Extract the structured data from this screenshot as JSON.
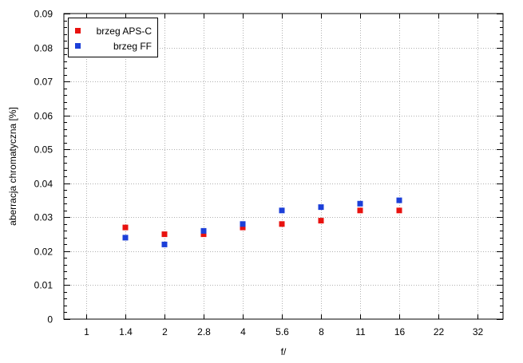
{
  "chart_data": {
    "type": "scatter",
    "xlabel": "f/",
    "ylabel": "aberracja chromatyczna [%]",
    "categories": [
      "1",
      "1.4",
      "2",
      "2.8",
      "4",
      "5.6",
      "8",
      "11",
      "16",
      "22",
      "32"
    ],
    "ylim": [
      0,
      0.09
    ],
    "yticks": [
      "0",
      "0.01",
      "0.02",
      "0.03",
      "0.04",
      "0.05",
      "0.06",
      "0.07",
      "0.08",
      "0.09"
    ],
    "grid": true,
    "legend_position": "top-left",
    "series": [
      {
        "name": "brzeg APS-C",
        "color": "#e8120f",
        "points": [
          {
            "x": "1.4",
            "y": 0.027
          },
          {
            "x": "2",
            "y": 0.025
          },
          {
            "x": "2.8",
            "y": 0.025
          },
          {
            "x": "4",
            "y": 0.027
          },
          {
            "x": "5.6",
            "y": 0.028
          },
          {
            "x": "8",
            "y": 0.029
          },
          {
            "x": "11",
            "y": 0.032
          },
          {
            "x": "16",
            "y": 0.032
          }
        ]
      },
      {
        "name": "brzeg FF",
        "color": "#1c3fd8",
        "points": [
          {
            "x": "1.4",
            "y": 0.024
          },
          {
            "x": "2",
            "y": 0.022
          },
          {
            "x": "2.8",
            "y": 0.026
          },
          {
            "x": "4",
            "y": 0.028
          },
          {
            "x": "5.6",
            "y": 0.032
          },
          {
            "x": "8",
            "y": 0.033
          },
          {
            "x": "11",
            "y": 0.034
          },
          {
            "x": "16",
            "y": 0.035
          }
        ]
      }
    ]
  }
}
